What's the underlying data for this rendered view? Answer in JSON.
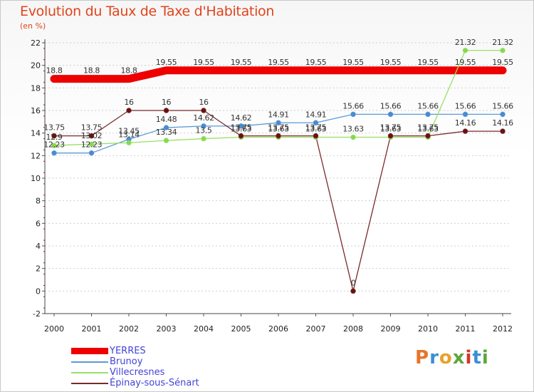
{
  "header": {
    "title": "Evolution du Taux de Taxe d'Habitation",
    "subtitle": "(en %)"
  },
  "logo": {
    "letters": [
      "P",
      "r",
      "o",
      "x",
      "i",
      "t",
      "i"
    ],
    "colors": [
      "#e8752a",
      "#3a8fd6",
      "#e8a12a",
      "#5aa83a",
      "#d6342a",
      "#3a8fd6",
      "#5aa83a"
    ]
  },
  "chart_data": {
    "type": "line",
    "title": "Evolution du Taux de Taxe d'Habitation",
    "ylabel": "(en %)",
    "xlabel": "",
    "categories": [
      "2000",
      "2001",
      "2002",
      "2003",
      "2004",
      "2005",
      "2006",
      "2007",
      "2008",
      "2009",
      "2010",
      "2011",
      "2012"
    ],
    "ylim": [
      -2,
      22
    ],
    "yticks": [
      -2,
      0,
      2,
      4,
      6,
      8,
      10,
      12,
      14,
      16,
      18,
      20,
      22
    ],
    "series": [
      {
        "name": "YERRES",
        "color": "#ee0000",
        "thick": true,
        "values": [
          18.8,
          18.8,
          18.8,
          19.55,
          19.55,
          19.55,
          19.55,
          19.55,
          19.55,
          19.55,
          19.55,
          19.55,
          19.55
        ],
        "labels": [
          "18.8",
          "18.8",
          "18.8",
          "19.55",
          "19.55",
          "19.55",
          "19.55",
          "19.55",
          "19.55",
          "19.55",
          "19.55",
          "19.55",
          "19.55"
        ]
      },
      {
        "name": "Brunoy",
        "color": "#5a9bd5",
        "marker": "#4a8ad0",
        "values": [
          12.23,
          12.23,
          13.45,
          14.48,
          14.62,
          14.62,
          14.91,
          14.91,
          15.66,
          15.66,
          15.66,
          15.66,
          15.66
        ],
        "labels": [
          "12.23",
          "12.23",
          "13.45",
          "14.48",
          "14.62",
          "14.62",
          "14.91",
          "14.91",
          "15.66",
          "15.66",
          "15.66",
          "15.66",
          "15.66"
        ]
      },
      {
        "name": "Villecresnes",
        "color": "#99e066",
        "marker": "#88d84c",
        "values": [
          12.9,
          13.02,
          13.14,
          13.34,
          13.5,
          13.63,
          13.63,
          13.63,
          13.63,
          13.63,
          13.63,
          21.32,
          21.32
        ],
        "labels": [
          "12.9",
          "13.02",
          "13.14",
          "13.34",
          "13.5",
          "13.63",
          "13.63",
          "13.63",
          "13.63",
          "13.63",
          "13.63",
          "21.32",
          "21.32"
        ]
      },
      {
        "name": "Épinay-sous-Sénart",
        "color": "#7a2a2a",
        "marker": "#6a1010",
        "values": [
          13.75,
          13.75,
          16,
          16,
          16,
          13.75,
          13.75,
          13.75,
          0,
          13.75,
          13.75,
          14.16,
          14.16
        ],
        "labels": [
          "13.75",
          "13.75",
          "16",
          "16",
          "16",
          "13.75",
          "13.75",
          "13.75",
          "0",
          "13.75",
          "13.75",
          "14.16",
          "14.16"
        ]
      }
    ],
    "legend_position": "bottom-left"
  }
}
